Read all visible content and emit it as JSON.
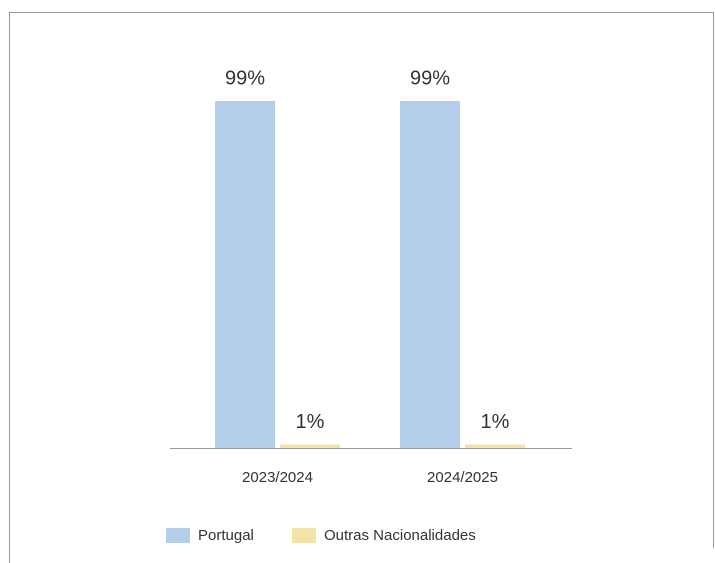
{
  "chart_data": {
    "type": "bar",
    "categories": [
      "2023/2024",
      "2024/2025"
    ],
    "series": [
      {
        "name": "Portugal",
        "color": "#b4cfeb",
        "values": [
          99,
          99
        ],
        "value_labels": [
          "99%",
          "99%"
        ]
      },
      {
        "name": "Outras Nacionalidades",
        "color": "#f3e3a6",
        "values": [
          1,
          1
        ],
        "value_labels": [
          "1%",
          "1%"
        ]
      }
    ]
  }
}
